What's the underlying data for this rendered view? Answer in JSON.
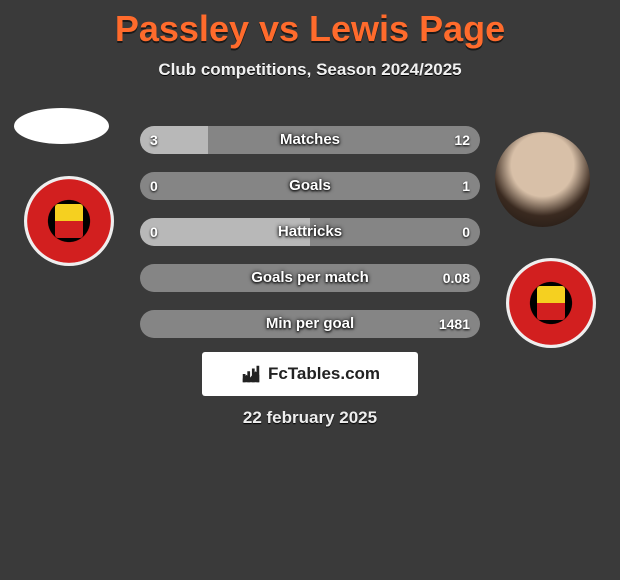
{
  "title": "Passley vs Lewis Page",
  "subtitle": "Club competitions, Season 2024/2025",
  "brand": "FcTables.com",
  "date": "22 february 2025",
  "colors": {
    "background": "#3a3a3a",
    "title": "#ff6b2c",
    "bar_left": "#b8b8b8",
    "bar_right": "#858585",
    "badge_red": "#d21f1f",
    "brand_bg": "#ffffff"
  },
  "bars": [
    {
      "label": "Matches",
      "left": "3",
      "right": "12",
      "left_pct": 20.0,
      "right_pct": 80.0
    },
    {
      "label": "Goals",
      "left": "0",
      "right": "1",
      "left_pct": 0.0,
      "right_pct": 100.0
    },
    {
      "label": "Hattricks",
      "left": "0",
      "right": "0",
      "left_pct": 50.0,
      "right_pct": 50.0
    },
    {
      "label": "Goals per match",
      "left": "",
      "right": "0.08",
      "left_pct": 0.0,
      "right_pct": 100.0
    },
    {
      "label": "Min per goal",
      "left": "",
      "right": "1481",
      "left_pct": 0.0,
      "right_pct": 100.0
    }
  ]
}
